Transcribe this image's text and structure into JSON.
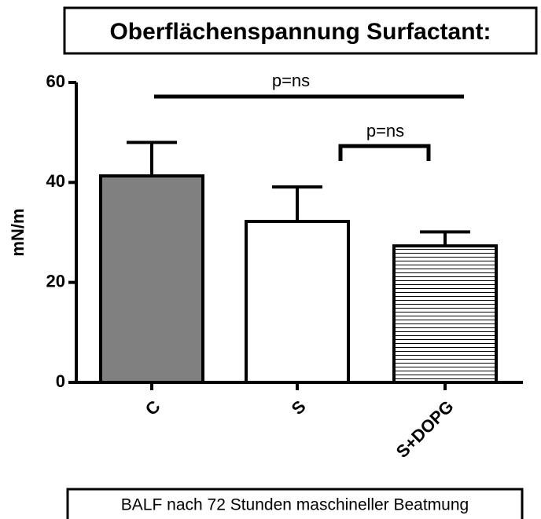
{
  "chart_data": {
    "type": "bar",
    "title": "Oberflächenspannung Surfactant:",
    "ylabel": "mN/m",
    "xlabel": "BALF nach 72 Stunden maschineller Beatmung",
    "categories": [
      "C",
      "S",
      "S+DOPG"
    ],
    "values": [
      41.3,
      32.2,
      27.3
    ],
    "errors": [
      6.7,
      6.9,
      2.8
    ],
    "colors": [
      "#808080",
      "#ffffff",
      "#ffffff"
    ],
    "patterns": [
      "solid",
      "solid",
      "horizontal-lines"
    ],
    "ylim": [
      0,
      60
    ],
    "yticks": [
      0,
      20,
      40,
      60
    ],
    "annotations": [
      "p=ns",
      "p=ns"
    ]
  }
}
